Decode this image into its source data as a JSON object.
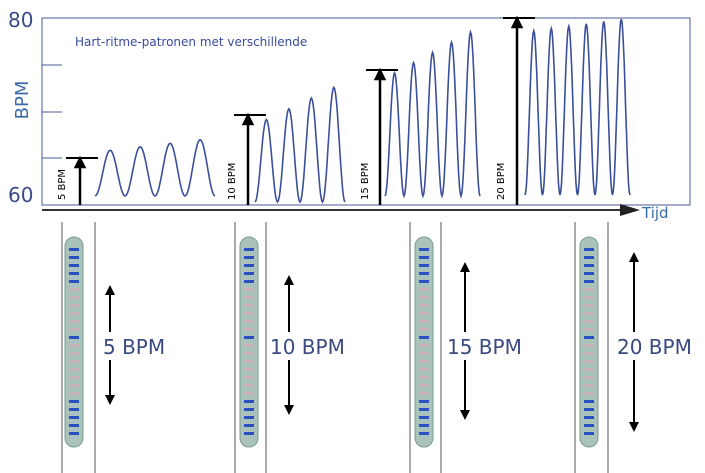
{
  "axis": {
    "top_label": "80",
    "bottom_label": "60",
    "y_title": "BPM",
    "x_title": "Tijd"
  },
  "caption": "Hart-ritme-patronen met verschillende",
  "groups": [
    {
      "small_label": "5 BPM",
      "label": "5 BPM"
    },
    {
      "small_label": "10 BPM",
      "label": "10 BPM"
    },
    {
      "small_label": "15 BPM",
      "label": "15 BPM"
    },
    {
      "small_label": "20 BPM",
      "label": "20 BPM"
    }
  ]
}
